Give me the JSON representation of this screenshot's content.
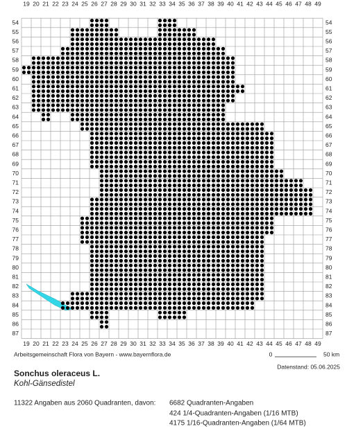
{
  "map": {
    "columns": [
      19,
      20,
      21,
      22,
      23,
      24,
      25,
      26,
      27,
      28,
      29,
      30,
      31,
      32,
      33,
      34,
      35,
      36,
      37,
      38,
      39,
      40,
      41,
      42,
      43,
      44,
      45,
      46,
      47,
      48,
      49
    ],
    "rows": [
      54,
      55,
      56,
      57,
      58,
      59,
      60,
      61,
      62,
      63,
      64,
      65,
      66,
      67,
      68,
      69,
      70,
      71,
      72,
      73,
      74,
      75,
      76,
      77,
      78,
      79,
      80,
      81,
      82,
      83,
      84,
      85,
      86,
      87
    ],
    "distribution": [
      {
        "row": 54,
        "segments": [
          [
            26,
            27
          ],
          [
            33,
            34
          ]
        ]
      },
      {
        "row": 55,
        "segments": [
          [
            24,
            28
          ],
          [
            33,
            36
          ]
        ]
      },
      {
        "row": 56,
        "segments": [
          [
            24,
            38
          ]
        ]
      },
      {
        "row": 57,
        "segments": [
          [
            23,
            39
          ]
        ]
      },
      {
        "row": 58,
        "segments": [
          [
            20,
            40
          ]
        ]
      },
      {
        "row": 59,
        "segments": [
          [
            19,
            40
          ]
        ]
      },
      {
        "row": 60,
        "segments": [
          [
            20,
            40
          ]
        ]
      },
      {
        "row": 61,
        "segments": [
          [
            20,
            41
          ]
        ]
      },
      {
        "row": 62,
        "segments": [
          [
            20,
            40
          ]
        ]
      },
      {
        "row": 63,
        "segments": [
          [
            20,
            22
          ],
          [
            23,
            39
          ]
        ]
      },
      {
        "row": 64,
        "segments": [
          [
            21,
            21
          ],
          [
            24,
            39
          ]
        ]
      },
      {
        "row": 65,
        "segments": [
          [
            25,
            43
          ]
        ]
      },
      {
        "row": 66,
        "segments": [
          [
            26,
            44
          ]
        ]
      },
      {
        "row": 67,
        "segments": [
          [
            26,
            44
          ]
        ]
      },
      {
        "row": 68,
        "segments": [
          [
            26,
            44
          ]
        ]
      },
      {
        "row": 69,
        "segments": [
          [
            26,
            44
          ]
        ]
      },
      {
        "row": 70,
        "segments": [
          [
            27,
            45
          ]
        ]
      },
      {
        "row": 71,
        "segments": [
          [
            27,
            47
          ]
        ]
      },
      {
        "row": 72,
        "segments": [
          [
            27,
            48
          ]
        ]
      },
      {
        "row": 73,
        "segments": [
          [
            26,
            48
          ]
        ]
      },
      {
        "row": 74,
        "segments": [
          [
            26,
            48
          ]
        ]
      },
      {
        "row": 75,
        "segments": [
          [
            25,
            44
          ]
        ]
      },
      {
        "row": 76,
        "segments": [
          [
            25,
            44
          ]
        ]
      },
      {
        "row": 77,
        "segments": [
          [
            25,
            43
          ]
        ]
      },
      {
        "row": 78,
        "segments": [
          [
            26,
            43
          ]
        ]
      },
      {
        "row": 79,
        "segments": [
          [
            26,
            43
          ]
        ]
      },
      {
        "row": 80,
        "segments": [
          [
            26,
            43
          ]
        ]
      },
      {
        "row": 81,
        "segments": [
          [
            26,
            43
          ]
        ]
      },
      {
        "row": 82,
        "segments": [
          [
            26,
            43
          ]
        ]
      },
      {
        "row": 83,
        "segments": [
          [
            24,
            43
          ]
        ]
      },
      {
        "row": 84,
        "segments": [
          [
            23,
            33
          ],
          [
            34,
            42
          ]
        ]
      },
      {
        "row": 85,
        "segments": [
          [
            26,
            27
          ],
          [
            33,
            35
          ]
        ]
      },
      {
        "row": 86,
        "segments": [
          [
            27,
            27
          ]
        ]
      }
    ],
    "credit": "Arbeitsgemeinschaft Flora von Bayern - www.bayernflora.de",
    "scale_start": "0",
    "scale_end": "50 km",
    "date": "Datenstand: 05.06.2025",
    "species": "Sonchus oleraceus L.",
    "common_name": "Kohl-Gänsedistel",
    "summary": "11322 Angaben aus 2060 Quadranten, davon:",
    "details": [
      "6682 Quadranten-Angaben",
      "424 1/4-Quadranten-Angaben (1/16 MTB)",
      "4175 1/16-Quadranten-Angaben (1/64 MTB)"
    ]
  }
}
